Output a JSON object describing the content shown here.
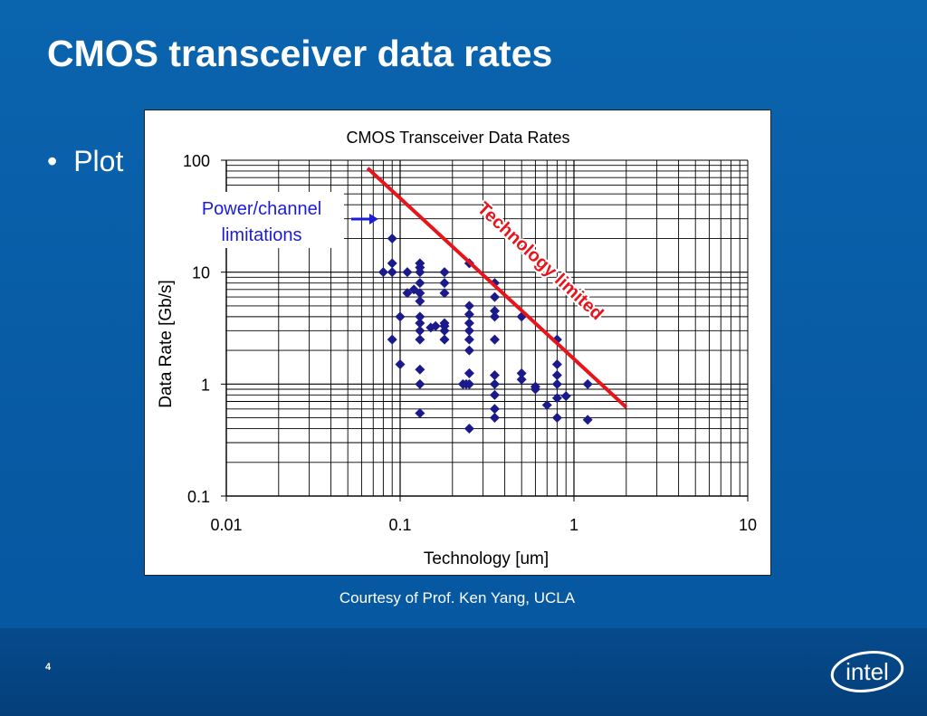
{
  "slide": {
    "title": "CMOS transceiver data rates",
    "bullet": "Plot",
    "bullet_marker": "•",
    "courtesy": "Courtesy of Prof. Ken Yang, UCLA",
    "page_number": "4",
    "logo_text": "intel"
  },
  "colors": {
    "background": "#0a5fa8",
    "points": "#1a1a8c",
    "trend": "#e8141b",
    "annotation": "#1c1cd6"
  },
  "chart_data": {
    "type": "scatter",
    "title": "CMOS Transceiver Data Rates",
    "xlabel": "Technology [um]",
    "ylabel": "Data Rate [Gb/s]",
    "xscale": "log",
    "yscale": "log",
    "xlim": [
      0.01,
      10
    ],
    "ylim": [
      0.1,
      100
    ],
    "grid": true,
    "x_tick_labels": [
      "0.01",
      "0.1",
      "1",
      "10"
    ],
    "y_tick_labels": [
      "0.1",
      "1",
      "10",
      "100"
    ],
    "annotations": [
      {
        "text_lines": [
          "Power/channel",
          "limitations"
        ],
        "color": "#1c1cd6"
      },
      {
        "text": "Technology limited",
        "color": "#e8141b"
      }
    ],
    "trend_line": {
      "x": [
        0.065,
        2.0
      ],
      "y": [
        85,
        0.62
      ]
    },
    "points": [
      {
        "x": 0.09,
        "y": 20
      },
      {
        "x": 0.08,
        "y": 10
      },
      {
        "x": 0.09,
        "y": 10
      },
      {
        "x": 0.09,
        "y": 12
      },
      {
        "x": 0.1,
        "y": 4
      },
      {
        "x": 0.09,
        "y": 2.5
      },
      {
        "x": 0.1,
        "y": 1.5
      },
      {
        "x": 0.11,
        "y": 10
      },
      {
        "x": 0.11,
        "y": 6.5
      },
      {
        "x": 0.12,
        "y": 7
      },
      {
        "x": 0.13,
        "y": 12
      },
      {
        "x": 0.13,
        "y": 11
      },
      {
        "x": 0.13,
        "y": 10
      },
      {
        "x": 0.13,
        "y": 8
      },
      {
        "x": 0.13,
        "y": 6.5
      },
      {
        "x": 0.13,
        "y": 5.5
      },
      {
        "x": 0.13,
        "y": 4
      },
      {
        "x": 0.13,
        "y": 3.5
      },
      {
        "x": 0.13,
        "y": 3
      },
      {
        "x": 0.13,
        "y": 2.5
      },
      {
        "x": 0.13,
        "y": 1.35
      },
      {
        "x": 0.13,
        "y": 1
      },
      {
        "x": 0.13,
        "y": 0.55
      },
      {
        "x": 0.15,
        "y": 3.2
      },
      {
        "x": 0.16,
        "y": 3.3
      },
      {
        "x": 0.18,
        "y": 10
      },
      {
        "x": 0.18,
        "y": 8
      },
      {
        "x": 0.18,
        "y": 6.5
      },
      {
        "x": 0.18,
        "y": 3.5
      },
      {
        "x": 0.18,
        "y": 3.3
      },
      {
        "x": 0.18,
        "y": 3
      },
      {
        "x": 0.18,
        "y": 2.5
      },
      {
        "x": 0.23,
        "y": 1
      },
      {
        "x": 0.24,
        "y": 1
      },
      {
        "x": 0.25,
        "y": 12
      },
      {
        "x": 0.25,
        "y": 5
      },
      {
        "x": 0.25,
        "y": 4.2
      },
      {
        "x": 0.25,
        "y": 3.5
      },
      {
        "x": 0.25,
        "y": 3
      },
      {
        "x": 0.25,
        "y": 2.5
      },
      {
        "x": 0.25,
        "y": 2
      },
      {
        "x": 0.25,
        "y": 1.25
      },
      {
        "x": 0.25,
        "y": 1
      },
      {
        "x": 0.25,
        "y": 0.4
      },
      {
        "x": 0.35,
        "y": 8
      },
      {
        "x": 0.35,
        "y": 6
      },
      {
        "x": 0.35,
        "y": 4.5
      },
      {
        "x": 0.35,
        "y": 4
      },
      {
        "x": 0.35,
        "y": 2.5
      },
      {
        "x": 0.35,
        "y": 1.2
      },
      {
        "x": 0.35,
        "y": 1
      },
      {
        "x": 0.35,
        "y": 0.8
      },
      {
        "x": 0.35,
        "y": 0.6
      },
      {
        "x": 0.35,
        "y": 0.5
      },
      {
        "x": 0.5,
        "y": 4
      },
      {
        "x": 0.5,
        "y": 1.25
      },
      {
        "x": 0.5,
        "y": 1.1
      },
      {
        "x": 0.6,
        "y": 0.95
      },
      {
        "x": 0.6,
        "y": 0.9
      },
      {
        "x": 0.7,
        "y": 0.65
      },
      {
        "x": 0.8,
        "y": 2.5
      },
      {
        "x": 0.8,
        "y": 1.5
      },
      {
        "x": 0.8,
        "y": 1.2
      },
      {
        "x": 0.8,
        "y": 1
      },
      {
        "x": 0.8,
        "y": 0.75
      },
      {
        "x": 0.8,
        "y": 0.5
      },
      {
        "x": 0.9,
        "y": 0.78
      },
      {
        "x": 1.2,
        "y": 1
      },
      {
        "x": 1.2,
        "y": 0.48
      }
    ]
  }
}
